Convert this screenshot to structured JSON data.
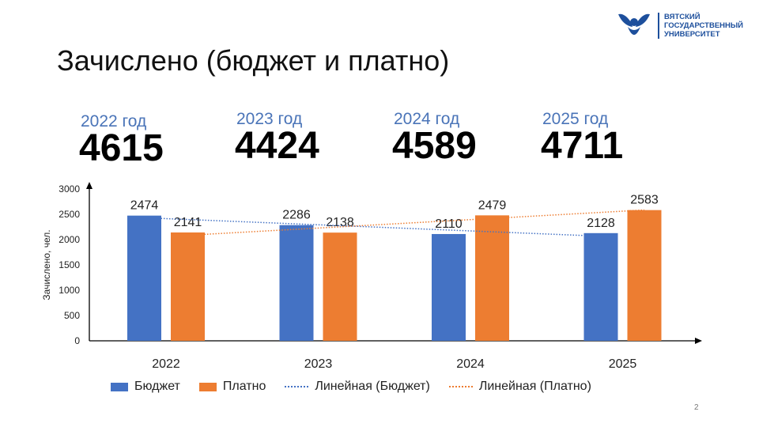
{
  "header": {
    "title": "Зачислено (бюджет и платно)",
    "logo_text": [
      "ВЯТСКИЙ",
      "ГОСУДАРСТВЕННЫЙ",
      "УНИВЕРСИТЕТ"
    ]
  },
  "totals": [
    {
      "year": "2022 год",
      "value": "4615"
    },
    {
      "year": "2023 год",
      "value": "4424"
    },
    {
      "year": "2024 год",
      "value": "4589"
    },
    {
      "year": "2025 год",
      "value": "4711"
    }
  ],
  "chart_data": {
    "type": "bar",
    "categories": [
      "2022",
      "2023",
      "2024",
      "2025"
    ],
    "series": [
      {
        "name": "Бюджет",
        "values": [
          2474,
          2286,
          2110,
          2128
        ],
        "color": "#4472c4"
      },
      {
        "name": "Платно",
        "values": [
          2141,
          2138,
          2479,
          2583
        ],
        "color": "#ed7d31"
      }
    ],
    "trendlines": [
      {
        "name": "Линейная (Бюджет)",
        "series": "Бюджет",
        "color": "#4472c4"
      },
      {
        "name": "Линейная (Платно)",
        "series": "Платно",
        "color": "#ed7d31"
      }
    ],
    "ylabel": "Зачислено, чел.",
    "ylim": [
      0,
      3000
    ],
    "yticks": [
      "0",
      "500",
      "1000",
      "1500",
      "2000",
      "2500",
      "3000"
    ],
    "legend_position": "bottom"
  },
  "page_number": "2"
}
